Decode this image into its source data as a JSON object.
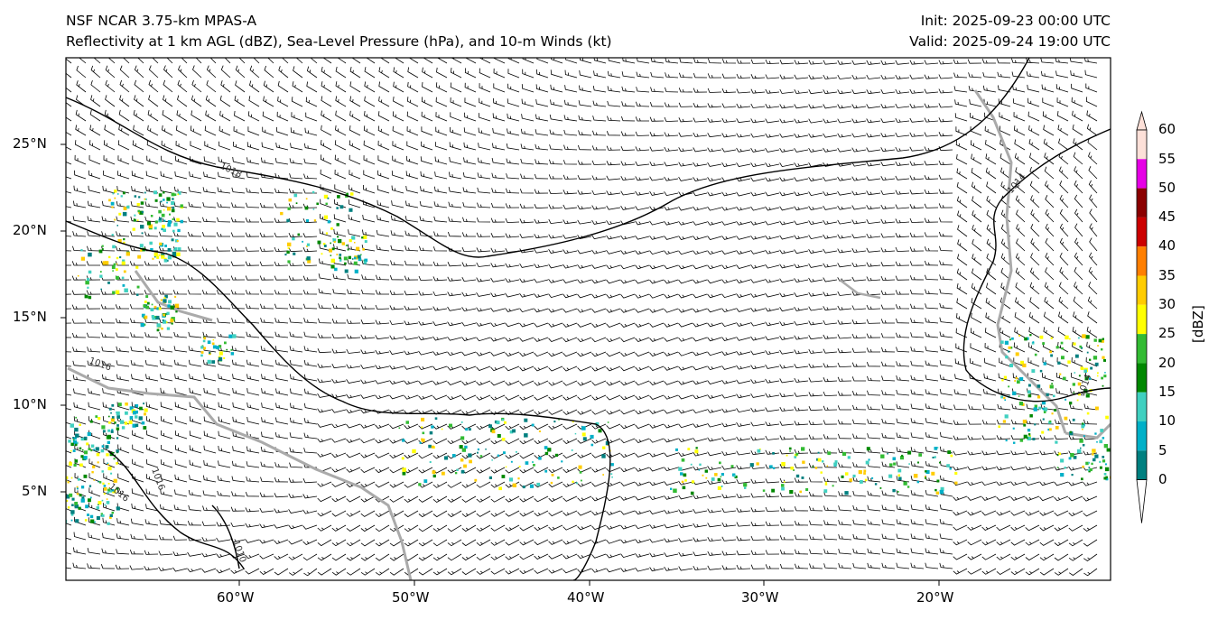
{
  "title": {
    "line1_left": "NSF NCAR 3.75-km MPAS-A",
    "line2_left": "Reflectivity at 1 km AGL (dBZ), Sea-Level Pressure (hPa), and 10-m Winds (kt)",
    "line1_right": "Init: 2025-09-23 00:00 UTC",
    "line2_right": "Valid: 2025-09-24 19:00 UTC"
  },
  "axes": {
    "lat_labels": [
      "25°N",
      "20°N",
      "15°N",
      "10°N",
      "5°N"
    ],
    "lon_labels": [
      "60°W",
      "50°W",
      "40°W",
      "30°W",
      "20°W"
    ]
  },
  "colorbar": {
    "unit_label": "[dBZ]",
    "ticks": [
      "60",
      "55",
      "50",
      "45",
      "40",
      "35",
      "30",
      "25",
      "20",
      "15",
      "10",
      "5",
      "0"
    ],
    "colors": [
      "#fde0d8",
      "#e600e6",
      "#8b0000",
      "#cc0000",
      "#ff7f00",
      "#ffcc00",
      "#ffff00",
      "#33bb33",
      "#008800",
      "#40d0c0",
      "#00b0c8",
      "#008080"
    ]
  },
  "isobar_labels": [
    "1018",
    "1018",
    "1016",
    "1016",
    "1016",
    "1016",
    "1010",
    "1014",
    "1014"
  ],
  "colors": {
    "isobar": "#000000",
    "barb": "#000000",
    "coast": "#aaaaaa"
  }
}
